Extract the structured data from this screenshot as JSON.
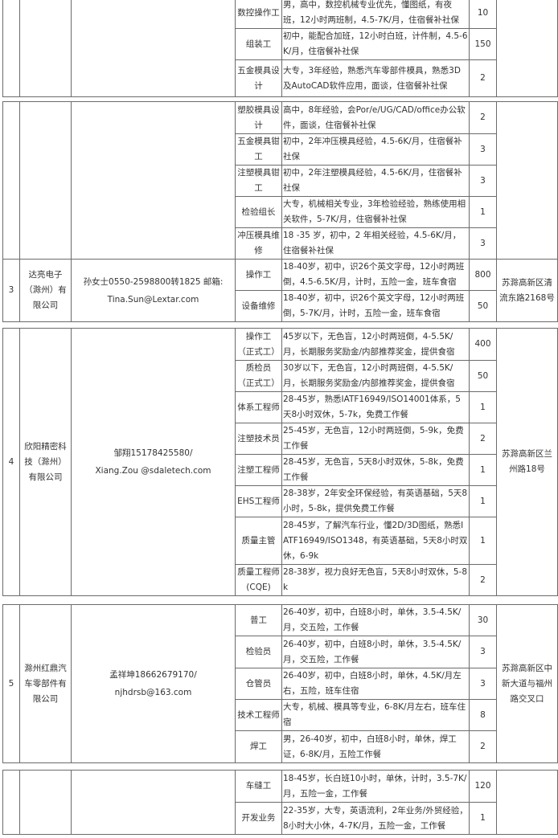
{
  "blocks": [
    {
      "index": "",
      "company": "",
      "contact": [],
      "address": "",
      "jobs": [
        {
          "title": "数控操作工",
          "requirements": "男，高中，数控机械专业优先，懂图纸，有夜班，12小时两班制，4.5-7K/月，住宿餐补社保",
          "count": "10"
        },
        {
          "title": "组装工",
          "requirements": "初中，能配合加班，12小时白班，计件制，4.5-6K/月，住宿餐补社保",
          "count": "150"
        },
        {
          "title": "五金模具设计",
          "requirements": "大专，3年经验，熟悉汽车零部件模具，熟悉3D及AutoCAD软件应用，面谈，住宿餐补社保",
          "count": "2"
        }
      ]
    },
    {
      "index": "",
      "company": "",
      "contact": [],
      "address": "",
      "jobs": [
        {
          "title": "塑胶模具设计",
          "requirements": "高中，8年经验，会Por/e/UG/CAD/office办公软件，面谈，住宿餐补社保",
          "count": "2"
        },
        {
          "title": "五金模具钳工",
          "requirements": "初中，2年冲压模具经验，4.5-6K/月，住宿餐补社保",
          "count": "3"
        },
        {
          "title": "注塑模具钳工",
          "requirements": "初中，2年注塑模具经验，4.5-6K/月，住宿餐补社保",
          "count": "3"
        },
        {
          "title": "检验组长",
          "requirements": "大专，机械相关专业，3年检验经验，熟练使用相关软件，5-7K/月，住宿餐补社保",
          "count": "1"
        },
        {
          "title": "冲压模具维修",
          "requirements": "18 -35 岁，初中，2 年相关经验，4.5-6K/月，住宿餐补社保",
          "count": "3"
        }
      ]
    },
    {
      "index": "3",
      "company": "达亮电子（滁州）有限公司",
      "contact": [
        "孙女士0550-2598800转1825 邮箱:",
        "Tina.Sun@Lextar.com"
      ],
      "address": "苏滁高新区清流东路2168号",
      "jobs": [
        {
          "title": "操作工",
          "requirements": "18-40岁，初中，识26个英文字母，12小时两班倒，4.5-6.5K/月，计时，五险一金，班车食宿",
          "count": "800"
        },
        {
          "title": "设备维修",
          "requirements": "18-40岁，初中，识26个英文字母，12小时两班倒，5-7K/月，计时，五险一金，班车食宿",
          "count": "50"
        }
      ]
    },
    {
      "index": "4",
      "company": "欣阳精密科技（滁州）有限公司",
      "contact": [
        "邹翔15178425580/",
        "Xiang.Zou @sdaletech.com"
      ],
      "address": "苏滁高新区兰州路18号",
      "jobs": [
        {
          "title": "操作工 （正式工）",
          "requirements": "45岁以下，无色盲，12小时两班倒，4-5.5K/月，长期服务奖励金/内部推荐奖金，提供食宿",
          "count": "400"
        },
        {
          "title": "质检员 （正式工）",
          "requirements": "30岁以下，无色盲，12小时两班倒，4-5.5K/月，长期服务奖励金/内部推荐奖金，提供食宿",
          "count": "50"
        },
        {
          "title": "体系工程师",
          "requirements": "28-45岁，熟悉IATF16949/ISO14001体系，5天8小时双休，5-7k，免费工作餐",
          "count": "1"
        },
        {
          "title": "注塑技术员",
          "requirements": "25-45岁，无色盲，12小时两班倒，5-9k，免费工作餐",
          "count": "2"
        },
        {
          "title": "注塑工程师",
          "requirements": "28-45岁，无色盲，5天8小时双休，5-8k，免费工作餐",
          "count": "1"
        },
        {
          "title": "EHS工程师",
          "requirements": "28-38岁，2年安全环保经验，有英语基础，5天8小时，5-8k，提供免费工作餐",
          "count": "1"
        },
        {
          "title": "质量主管",
          "requirements": "28-45岁，了解汽车行业，懂2D/3D图纸，熟悉IATF16949/ISO1348，有英语基础，5天8小时双休，6-9k",
          "count": "1"
        },
        {
          "title": "质量工程师(CQE)",
          "requirements": "28-38岁，视力良好无色盲，5天8小时双休，5-8k",
          "count": "2"
        }
      ]
    },
    {
      "index": "5",
      "company": "滁州红鼎汽车零部件有限公司",
      "contact": [
        "孟祥坤18662679170/",
        "njhdrsb@163.com"
      ],
      "address": "苏滁高新区中新大道与福州路交叉口",
      "jobs": [
        {
          "title": "普工",
          "requirements": "26-40岁，初中，白班8小时，单休，3.5-4.5K/月，交五险，工作餐",
          "count": "30"
        },
        {
          "title": "检验员",
          "requirements": "26-40岁，初中，白班8小时，单休，3.5-4.5K/月，交五险，工作餐",
          "count": "3"
        },
        {
          "title": "仓管员",
          "requirements": "26-40岁，初中，白班8小时，单休，4.5K/月左右，五险，班车住宿",
          "count": "3"
        },
        {
          "title": "技术工程师",
          "requirements": "大专，机械、模具等专业，6-8K/月左右，班车住宿",
          "count": "8"
        },
        {
          "title": "焊工",
          "requirements": "男，26-40岁，初中，白班8小时，单休，焊工证，6-8K/月，五险工作餐",
          "count": "2"
        }
      ]
    },
    {
      "index": "",
      "company": "",
      "contact": [],
      "address": "",
      "jobs": [
        {
          "title": "车缝工",
          "requirements": "18-45岁，长白班10小时，单休，计时，3.5-7K/月，五险一金，工作餐",
          "count": "120"
        },
        {
          "title": "开发业务",
          "requirements": "22-35岁，大专，英语流利，2年业务/外贸经验，8小时大小休，4-7K/月，五险一金，工作餐",
          "count": "1"
        }
      ]
    }
  ]
}
